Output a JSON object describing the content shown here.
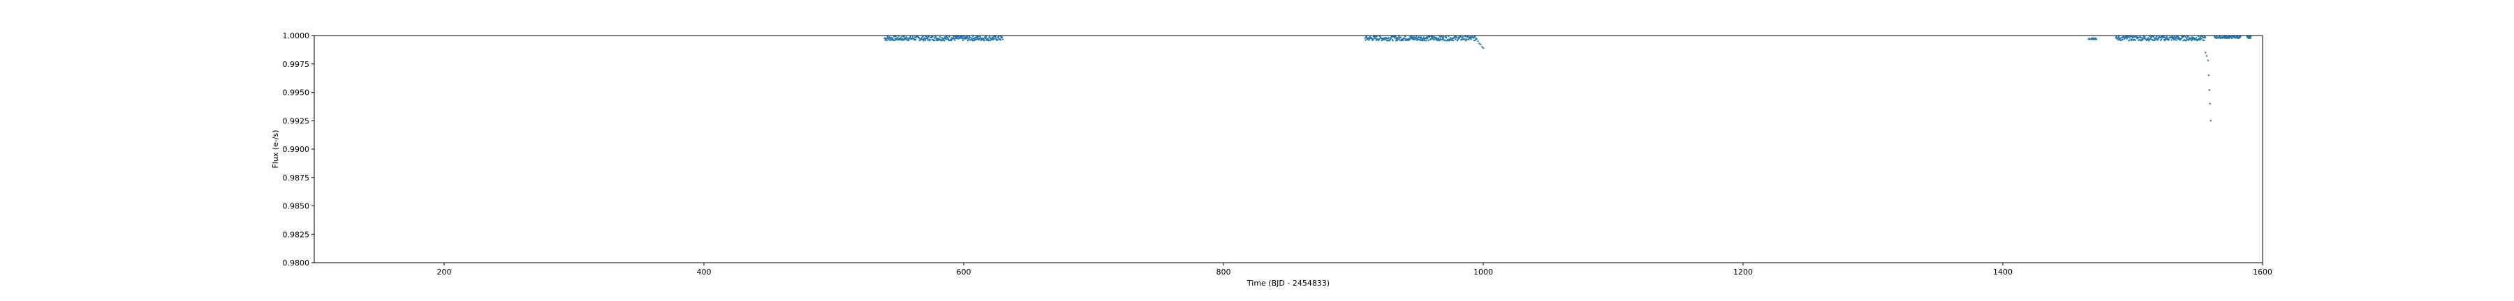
{
  "chart_data": {
    "type": "scatter",
    "title": "",
    "xlabel": "Time (BJD - 2454833)",
    "ylabel": "Flux (e-/s)",
    "xlim": [
      100,
      1600
    ],
    "ylim": [
      0.98,
      1.0
    ],
    "x_ticks": [
      200,
      400,
      600,
      800,
      1000,
      1200,
      1400,
      1600
    ],
    "x_tick_labels": [
      "200",
      "400",
      "600",
      "800",
      "1000",
      "1200",
      "1400",
      "1600"
    ],
    "y_ticks": [
      0.98,
      0.9825,
      0.985,
      0.9875,
      0.99,
      0.9925,
      0.995,
      0.9975,
      1.0
    ],
    "y_tick_labels": [
      "0.9800",
      "0.9825",
      "0.9850",
      "0.9875",
      "0.9900",
      "0.9925",
      "0.9950",
      "0.9975",
      "1.0000"
    ],
    "grid": false,
    "legend": "none",
    "color": "#1f77b4",
    "segments": [
      {
        "x_start": 539,
        "x_end": 630,
        "y_mean": 0.99975,
        "y_spread": 0.0002
      },
      {
        "x_start": 909,
        "x_end": 995,
        "y_mean": 0.99975,
        "y_spread": 0.0002
      },
      {
        "x_start": 1466,
        "x_end": 1472,
        "y_mean": 0.99975,
        "y_spread": 0.0001
      },
      {
        "x_start": 1487,
        "x_end": 1556,
        "y_mean": 0.99975,
        "y_spread": 0.0002
      },
      {
        "x_start": 1563,
        "x_end": 1583,
        "y_mean": 0.99985,
        "y_spread": 0.0001
      },
      {
        "x_start": 1588,
        "x_end": 1591,
        "y_mean": 0.99985,
        "y_spread": 0.0001
      }
    ],
    "dips": [
      {
        "x": 996,
        "y": 0.9995
      },
      {
        "x": 997,
        "y": 0.9993
      },
      {
        "x": 998,
        "y": 0.9992
      },
      {
        "x": 999,
        "y": 0.999
      },
      {
        "x": 1000,
        "y": 0.9989
      },
      {
        "x": 1556,
        "y": 0.9985
      },
      {
        "x": 1557,
        "y": 0.9982
      },
      {
        "x": 1558,
        "y": 0.9978
      },
      {
        "x": 1558.5,
        "y": 0.9965
      },
      {
        "x": 1559,
        "y": 0.9952
      },
      {
        "x": 1559.5,
        "y": 0.994
      },
      {
        "x": 1560,
        "y": 0.9925
      }
    ]
  }
}
